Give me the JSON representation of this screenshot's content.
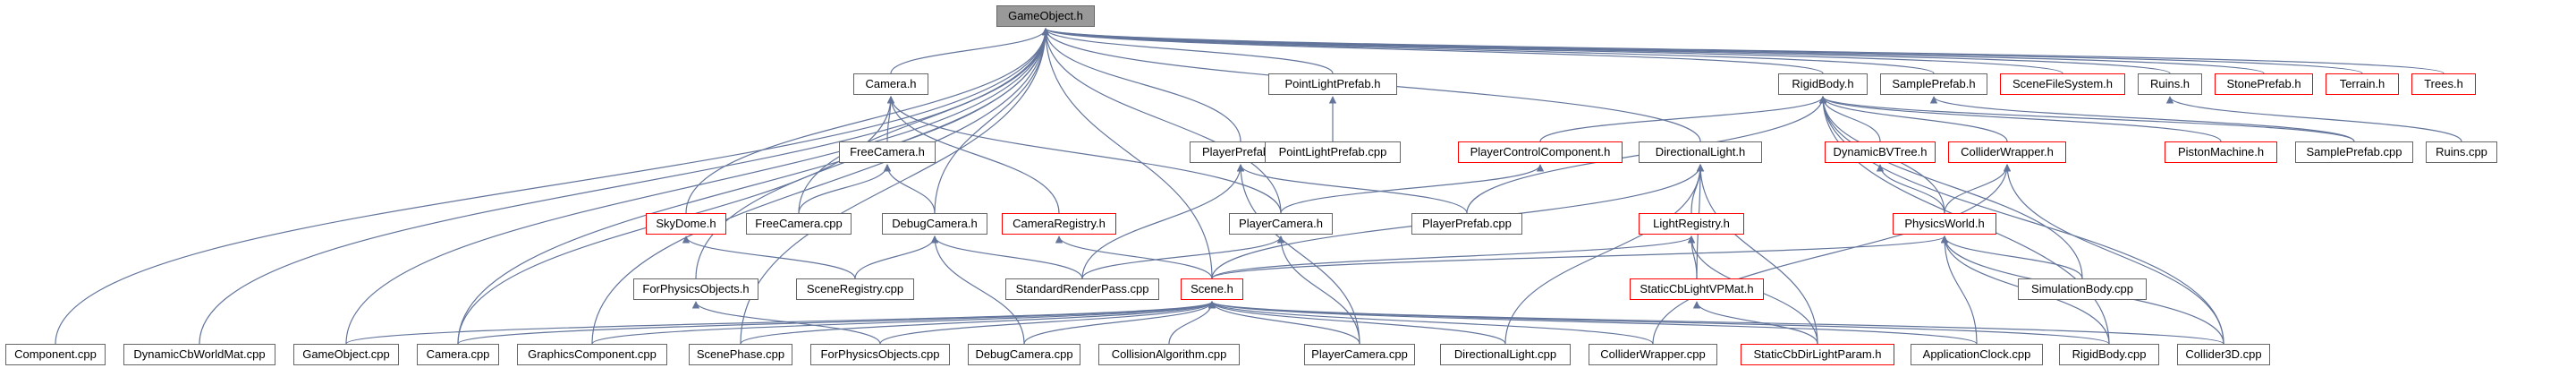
{
  "diagram": {
    "edge_color": "#63759b",
    "red_border_color": "#ff0000",
    "root_fill": "#999999",
    "nodes": [
      {
        "id": "gameobject_h",
        "label": "GameObject.h",
        "style": "root"
      },
      {
        "id": "camera_h",
        "label": "Camera.h",
        "style": "normal"
      },
      {
        "id": "pointlightprefab_h",
        "label": "PointLightPrefab.h",
        "style": "normal"
      },
      {
        "id": "rigidbody_h",
        "label": "RigidBody.h",
        "style": "normal"
      },
      {
        "id": "sampleprefab_h",
        "label": "SamplePrefab.h",
        "style": "normal"
      },
      {
        "id": "scenefilesystem_h",
        "label": "SceneFileSystem.h",
        "style": "red"
      },
      {
        "id": "ruins_h",
        "label": "Ruins.h",
        "style": "normal"
      },
      {
        "id": "stoneprefab_h",
        "label": "StonePrefab.h",
        "style": "red"
      },
      {
        "id": "terrain_h",
        "label": "Terrain.h",
        "style": "red"
      },
      {
        "id": "trees_h",
        "label": "Trees.h",
        "style": "red"
      },
      {
        "id": "freecamera_h",
        "label": "FreeCamera.h",
        "style": "normal"
      },
      {
        "id": "playerprefab_h",
        "label": "PlayerPrefab.h",
        "style": "normal"
      },
      {
        "id": "pointlightprefab_cpp",
        "label": "PointLightPrefab.cpp",
        "style": "normal"
      },
      {
        "id": "directionallight_h",
        "label": "DirectionalLight.h",
        "style": "normal"
      },
      {
        "id": "playercontrolcomponent_h",
        "label": "PlayerControlComponent.h",
        "style": "red"
      },
      {
        "id": "dynamicbvtree_h",
        "label": "DynamicBVTree.h",
        "style": "red"
      },
      {
        "id": "colliderwrapper_h",
        "label": "ColliderWrapper.h",
        "style": "red"
      },
      {
        "id": "pistonmachine_h",
        "label": "PistonMachine.h",
        "style": "red"
      },
      {
        "id": "sampleprefab_cpp",
        "label": "SamplePrefab.cpp",
        "style": "normal"
      },
      {
        "id": "ruins_cpp",
        "label": "Ruins.cpp",
        "style": "normal"
      },
      {
        "id": "skydome_h",
        "label": "SkyDome.h",
        "style": "red"
      },
      {
        "id": "freecamera_cpp",
        "label": "FreeCamera.cpp",
        "style": "normal"
      },
      {
        "id": "debugcamera_h",
        "label": "DebugCamera.h",
        "style": "normal"
      },
      {
        "id": "cameraregistry_h",
        "label": "CameraRegistry.h",
        "style": "red"
      },
      {
        "id": "playercamera_h",
        "label": "PlayerCamera.h",
        "style": "normal"
      },
      {
        "id": "playerprefab_cpp",
        "label": "PlayerPrefab.cpp",
        "style": "normal"
      },
      {
        "id": "lightregistry_h",
        "label": "LightRegistry.h",
        "style": "red"
      },
      {
        "id": "physicsworld_h",
        "label": "PhysicsWorld.h",
        "style": "red"
      },
      {
        "id": "forphysicsobjects_h",
        "label": "ForPhysicsObjects.h",
        "style": "normal"
      },
      {
        "id": "sceneregistry_cpp",
        "label": "SceneRegistry.cpp",
        "style": "normal"
      },
      {
        "id": "standardrenderpass_cpp",
        "label": "StandardRenderPass.cpp",
        "style": "normal"
      },
      {
        "id": "scene_h",
        "label": "Scene.h",
        "style": "red"
      },
      {
        "id": "staticcblightvpmat_h",
        "label": "StaticCbLightVPMat.h",
        "style": "red"
      },
      {
        "id": "simulationbody_cpp",
        "label": "SimulationBody.cpp",
        "style": "normal"
      },
      {
        "id": "component_cpp",
        "label": "Component.cpp",
        "style": "normal"
      },
      {
        "id": "dynamiccbworldmat_cpp",
        "label": "DynamicCbWorldMat.cpp",
        "style": "normal"
      },
      {
        "id": "gameobject_cpp",
        "label": "GameObject.cpp",
        "style": "normal"
      },
      {
        "id": "camera_cpp",
        "label": "Camera.cpp",
        "style": "normal"
      },
      {
        "id": "graphicscomponent_cpp",
        "label": "GraphicsComponent.cpp",
        "style": "normal"
      },
      {
        "id": "scenephase_cpp",
        "label": "ScenePhase.cpp",
        "style": "normal"
      },
      {
        "id": "forphysicsobjects_cpp",
        "label": "ForPhysicsObjects.cpp",
        "style": "normal"
      },
      {
        "id": "debugcamera_cpp",
        "label": "DebugCamera.cpp",
        "style": "normal"
      },
      {
        "id": "collisionalgorithm_cpp",
        "label": "CollisionAlgorithm.cpp",
        "style": "normal"
      },
      {
        "id": "playercamera_cpp",
        "label": "PlayerCamera.cpp",
        "style": "normal"
      },
      {
        "id": "directionallight_cpp",
        "label": "DirectionalLight.cpp",
        "style": "normal"
      },
      {
        "id": "colliderwrapper_cpp",
        "label": "ColliderWrapper.cpp",
        "style": "normal"
      },
      {
        "id": "staticcbdirlightparam_h",
        "label": "StaticCbDirLightParam.h",
        "style": "red"
      },
      {
        "id": "applicationclock_cpp",
        "label": "ApplicationClock.cpp",
        "style": "normal"
      },
      {
        "id": "rigidbody_cpp",
        "label": "RigidBody.cpp",
        "style": "normal"
      },
      {
        "id": "collider3d_cpp",
        "label": "Collider3D.cpp",
        "style": "normal"
      }
    ],
    "edges": [
      [
        "gameobject_h",
        "camera_h"
      ],
      [
        "gameobject_h",
        "pointlightprefab_h"
      ],
      [
        "gameobject_h",
        "rigidbody_h"
      ],
      [
        "gameobject_h",
        "sampleprefab_h"
      ],
      [
        "gameobject_h",
        "scenefilesystem_h"
      ],
      [
        "gameobject_h",
        "ruins_h"
      ],
      [
        "gameobject_h",
        "stoneprefab_h"
      ],
      [
        "gameobject_h",
        "terrain_h"
      ],
      [
        "gameobject_h",
        "trees_h"
      ],
      [
        "gameobject_h",
        "playerprefab_h"
      ],
      [
        "gameobject_h",
        "directionallight_h"
      ],
      [
        "gameobject_h",
        "skydome_h"
      ],
      [
        "gameobject_h",
        "freecamera_cpp"
      ],
      [
        "gameobject_h",
        "debugcamera_h"
      ],
      [
        "gameobject_h",
        "playercamera_h"
      ],
      [
        "gameobject_h",
        "forphysicsobjects_h"
      ],
      [
        "gameobject_h",
        "scene_h"
      ],
      [
        "gameobject_h",
        "component_cpp"
      ],
      [
        "gameobject_h",
        "dynamiccbworldmat_cpp"
      ],
      [
        "gameobject_h",
        "gameobject_cpp"
      ],
      [
        "gameobject_h",
        "camera_cpp"
      ],
      [
        "gameobject_h",
        "graphicscomponent_cpp"
      ],
      [
        "gameobject_h",
        "scenephase_cpp"
      ],
      [
        "camera_h",
        "freecamera_h"
      ],
      [
        "camera_h",
        "cameraregistry_h"
      ],
      [
        "camera_h",
        "playercamera_h"
      ],
      [
        "camera_h",
        "camera_cpp"
      ],
      [
        "pointlightprefab_h",
        "pointlightprefab_cpp"
      ],
      [
        "rigidbody_h",
        "playercontrolcomponent_h"
      ],
      [
        "rigidbody_h",
        "dynamicbvtree_h"
      ],
      [
        "rigidbody_h",
        "colliderwrapper_h"
      ],
      [
        "rigidbody_h",
        "pistonmachine_h"
      ],
      [
        "rigidbody_h",
        "sampleprefab_cpp"
      ],
      [
        "rigidbody_h",
        "playerprefab_cpp"
      ],
      [
        "rigidbody_h",
        "physicsworld_h"
      ],
      [
        "rigidbody_h",
        "simulationbody_cpp"
      ],
      [
        "rigidbody_h",
        "rigidbody_cpp"
      ],
      [
        "rigidbody_h",
        "collider3d_cpp"
      ],
      [
        "sampleprefab_h",
        "sampleprefab_cpp"
      ],
      [
        "ruins_h",
        "ruins_cpp"
      ],
      [
        "freecamera_h",
        "freecamera_cpp"
      ],
      [
        "freecamera_h",
        "debugcamera_h"
      ],
      [
        "playerprefab_h",
        "playerprefab_cpp"
      ],
      [
        "playerprefab_h",
        "standardrenderpass_cpp"
      ],
      [
        "playerprefab_h",
        "playercamera_cpp"
      ],
      [
        "directionallight_h",
        "lightregistry_h"
      ],
      [
        "directionallight_h",
        "scene_h"
      ],
      [
        "directionallight_h",
        "staticcblightvpmat_h"
      ],
      [
        "directionallight_h",
        "directionallight_cpp"
      ],
      [
        "directionallight_h",
        "staticcbdirlightparam_h"
      ],
      [
        "playercontrolcomponent_h",
        "playercamera_h"
      ],
      [
        "dynamicbvtree_h",
        "physicsworld_h"
      ],
      [
        "colliderwrapper_h",
        "physicsworld_h"
      ],
      [
        "colliderwrapper_h",
        "colliderwrapper_cpp"
      ],
      [
        "colliderwrapper_h",
        "collider3d_cpp"
      ],
      [
        "skydome_h",
        "sceneregistry_cpp"
      ],
      [
        "debugcamera_h",
        "sceneregistry_cpp"
      ],
      [
        "debugcamera_h",
        "standardrenderpass_cpp"
      ],
      [
        "debugcamera_h",
        "debugcamera_cpp"
      ],
      [
        "cameraregistry_h",
        "scene_h"
      ],
      [
        "playercamera_h",
        "standardrenderpass_cpp"
      ],
      [
        "playercamera_h",
        "playercamera_cpp"
      ],
      [
        "lightregistry_h",
        "scene_h"
      ],
      [
        "lightregistry_h",
        "staticcblightvpmat_h"
      ],
      [
        "lightregistry_h",
        "staticcbdirlightparam_h"
      ],
      [
        "physicsworld_h",
        "scene_h"
      ],
      [
        "physicsworld_h",
        "simulationbody_cpp"
      ],
      [
        "physicsworld_h",
        "applicationclock_cpp"
      ],
      [
        "physicsworld_h",
        "rigidbody_cpp"
      ],
      [
        "physicsworld_h",
        "collider3d_cpp"
      ],
      [
        "forphysicsobjects_h",
        "forphysicsobjects_cpp"
      ],
      [
        "staticcblightvpmat_h",
        "staticcbdirlightparam_h"
      ],
      [
        "scene_h",
        "camera_cpp"
      ],
      [
        "scene_h",
        "graphicscomponent_cpp"
      ],
      [
        "scene_h",
        "scenephase_cpp"
      ],
      [
        "scene_h",
        "forphysicsobjects_cpp"
      ],
      [
        "scene_h",
        "debugcamera_cpp"
      ],
      [
        "scene_h",
        "collisionalgorithm_cpp"
      ],
      [
        "scene_h",
        "playercamera_cpp"
      ],
      [
        "scene_h",
        "directionallight_cpp"
      ],
      [
        "scene_h",
        "colliderwrapper_cpp"
      ],
      [
        "scene_h",
        "applicationclock_cpp"
      ],
      [
        "scene_h",
        "rigidbody_cpp"
      ],
      [
        "scene_h",
        "collider3d_cpp"
      ],
      [
        "scene_h",
        "gameobject_cpp"
      ]
    ]
  }
}
